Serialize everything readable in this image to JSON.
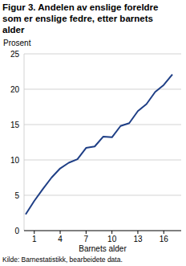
{
  "chart_data": {
    "type": "line",
    "title": [
      "Figur 3. Andelen av enslige foreldre",
      "som er enslige fedre, etter barnets",
      "alder"
    ],
    "y_label": "Prosent",
    "x_label": "Barnets alder",
    "source": "Kilde: Barnestatistikk, bearbeidete data.",
    "categories": [
      null,
      "1",
      null,
      null,
      "4",
      null,
      null,
      "7",
      null,
      null,
      "10",
      null,
      null,
      "13",
      null,
      null,
      "16",
      null
    ],
    "values": [
      2.3,
      4.2,
      5.9,
      7.5,
      8.8,
      9.6,
      10.1,
      11.7,
      11.9,
      13.3,
      13.2,
      14.8,
      15.2,
      16.9,
      17.9,
      19.6,
      20.6,
      22.1
    ],
    "color": "#1f3f86",
    "ylim": [
      0,
      25
    ],
    "yticks": [
      0,
      5,
      10,
      15,
      20,
      25
    ],
    "grid": true
  }
}
